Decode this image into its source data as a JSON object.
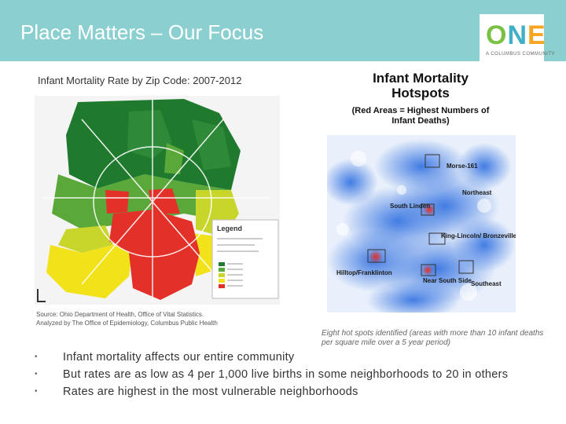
{
  "header": {
    "title": "Place Matters – Our Focus",
    "logo_text": "ONE",
    "logo_subtext": "A COLUMBUS COMMUNITY"
  },
  "map": {
    "label": "Infant Mortality Rate by Zip Code: 2007-2012",
    "legend_title": "Legend",
    "source_line1": "Source: Ohio Department of Health, Office of Vital Statistics.",
    "source_line2": "Analyzed by The Office of Epidemiology, Columbus Public Health",
    "colors": [
      "#1f7a2e",
      "#5aa83a",
      "#c8d62b",
      "#f1e21a",
      "#e3312a"
    ]
  },
  "hotspots": {
    "title_line1": "Infant Mortality",
    "title_line2": "Hotspots",
    "subtitle_line1": "(Red Areas = Highest Numbers of",
    "subtitle_line2": "Infant Deaths)",
    "labels": {
      "morse": "Morse-161",
      "northeast": "Northeast",
      "south_linden": "South Linden",
      "king_lincoln": "King-Lincoln/ Bronzeville",
      "hilltop": "Hilltop/Franklinton",
      "near_south": "Near South Side",
      "southeast": "Southeast"
    },
    "caption": "Eight hot spots identified (areas with more than 10 infant deaths per square mile over a 5 year period)"
  },
  "bullets": [
    "Infant mortality affects our entire community",
    "But rates are as low as 4 per 1,000 live births in some neighborhoods to 20 in others",
    "Rates are highest in the most vulnerable neighborhoods"
  ]
}
